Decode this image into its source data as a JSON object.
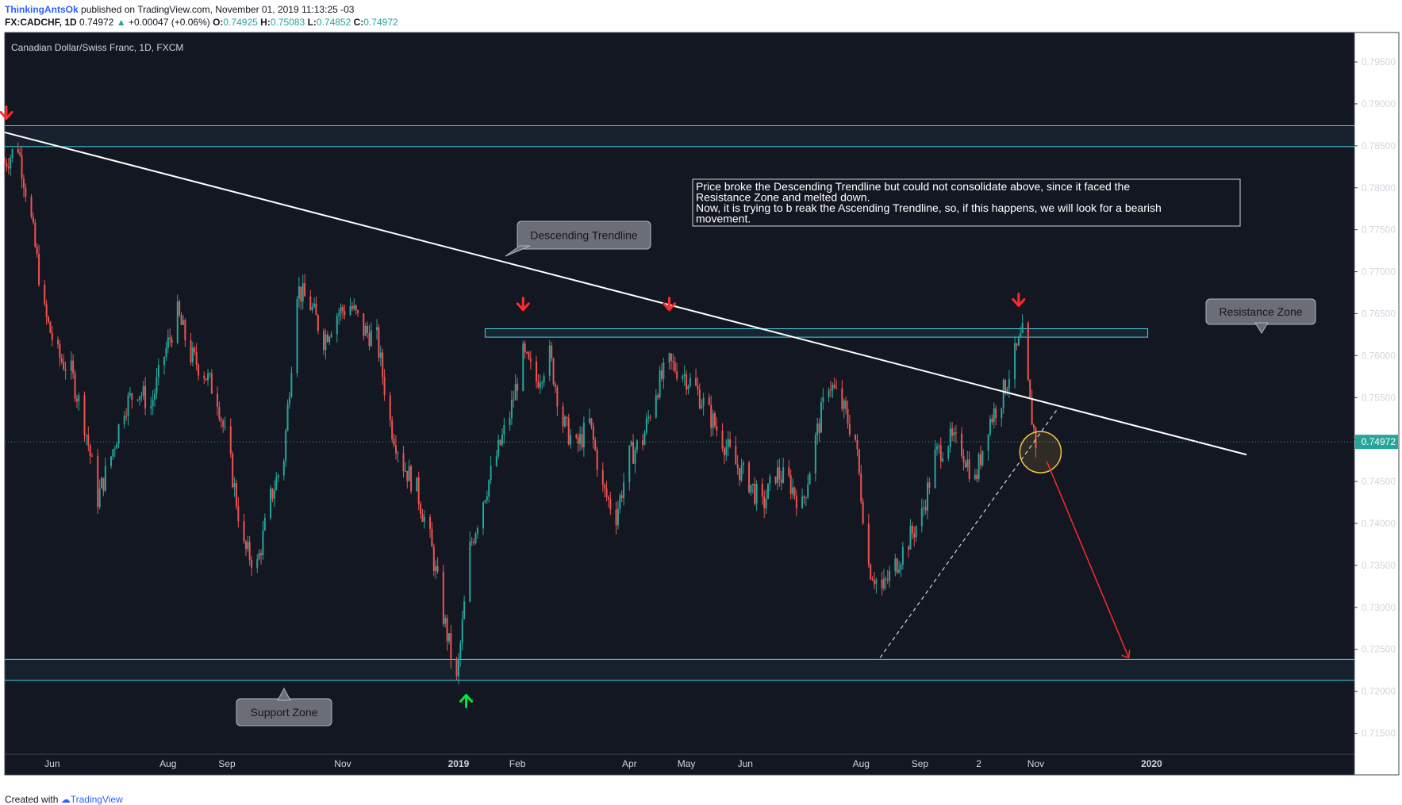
{
  "header": {
    "author": "ThinkingAntsOk",
    "published": "published on TradingView.com, November 01, 2019 11:13:25 -03",
    "symbol": "FX:CADCHF, 1D",
    "last": "0.74972",
    "arrow": "▲",
    "change": "+0.00047 (+0.06%)",
    "o_label": "O:",
    "o_value": "0.74925",
    "h_label": "H:",
    "h_value": "0.75083",
    "l_label": "L:",
    "l_value": "0.74852",
    "c_label": "C:",
    "c_value": "0.74972"
  },
  "footer": {
    "created_with": "Created with",
    "brand": "TradingView"
  },
  "chart_data": {
    "type": "candlestick",
    "title": "Canadian Dollar/Swiss Franc, 1D, FXCM",
    "ylim": [
      0.7125,
      0.7985
    ],
    "y_ticks": [
      0.715,
      0.72,
      0.725,
      0.73,
      0.735,
      0.74,
      0.745,
      0.75,
      0.755,
      0.76,
      0.765,
      0.77,
      0.775,
      0.78,
      0.785,
      0.79,
      0.795
    ],
    "y_tick_labels": [
      "0.71500",
      "0.72000",
      "0.72500",
      "0.73000",
      "0.73500",
      "0.74000",
      "0.74500",
      "0.75000",
      "0.75500",
      "0.76000",
      "0.76500",
      "0.77000",
      "0.77500",
      "0.78000",
      "0.78500",
      "0.79000",
      "0.79500"
    ],
    "x_start": "2018-05-07",
    "x_end": "2020-02-20",
    "x_ticks": [
      {
        "label": "Jun",
        "date": "2018-06-01",
        "bold": false
      },
      {
        "label": "Aug",
        "date": "2018-08-01",
        "bold": false
      },
      {
        "label": "Sep",
        "date": "2018-09-01",
        "bold": false
      },
      {
        "label": "Nov",
        "date": "2018-11-01",
        "bold": false
      },
      {
        "label": "2019",
        "date": "2019-01-01",
        "bold": true
      },
      {
        "label": "Feb",
        "date": "2019-02-01",
        "bold": false
      },
      {
        "label": "Apr",
        "date": "2019-04-01",
        "bold": false
      },
      {
        "label": "May",
        "date": "2019-05-01",
        "bold": false
      },
      {
        "label": "Jun",
        "date": "2019-06-01",
        "bold": false
      },
      {
        "label": "Aug",
        "date": "2019-08-01",
        "bold": false
      },
      {
        "label": "Sep",
        "date": "2019-09-01",
        "bold": false
      },
      {
        "label": "2",
        "date": "2019-10-02",
        "bold": false
      },
      {
        "label": "Nov",
        "date": "2019-11-01",
        "bold": false
      },
      {
        "label": "2020",
        "date": "2020-01-01",
        "bold": true
      }
    ],
    "last_price": 0.74972,
    "last_price_label": "0.74972",
    "price_path": [
      [
        "2018-05-07",
        0.783
      ],
      [
        "2018-05-14",
        0.785
      ],
      [
        "2018-05-21",
        0.776
      ],
      [
        "2018-05-28",
        0.765
      ],
      [
        "2018-06-04",
        0.76
      ],
      [
        "2018-06-11",
        0.758
      ],
      [
        "2018-06-18",
        0.752
      ],
      [
        "2018-06-25",
        0.743
      ],
      [
        "2018-07-02",
        0.748
      ],
      [
        "2018-07-09",
        0.754
      ],
      [
        "2018-07-16",
        0.756
      ],
      [
        "2018-07-23",
        0.754
      ],
      [
        "2018-07-30",
        0.76
      ],
      [
        "2018-08-06",
        0.765
      ],
      [
        "2018-08-13",
        0.76
      ],
      [
        "2018-08-20",
        0.758
      ],
      [
        "2018-08-27",
        0.755
      ],
      [
        "2018-09-03",
        0.747
      ],
      [
        "2018-09-10",
        0.737
      ],
      [
        "2018-09-17",
        0.735
      ],
      [
        "2018-09-24",
        0.743
      ],
      [
        "2018-10-01",
        0.748
      ],
      [
        "2018-10-08",
        0.768
      ],
      [
        "2018-10-15",
        0.766
      ],
      [
        "2018-10-22",
        0.762
      ],
      [
        "2018-10-29",
        0.765
      ],
      [
        "2018-11-05",
        0.766
      ],
      [
        "2018-11-12",
        0.763
      ],
      [
        "2018-11-19",
        0.762
      ],
      [
        "2018-11-26",
        0.752
      ],
      [
        "2018-12-03",
        0.747
      ],
      [
        "2018-12-10",
        0.744
      ],
      [
        "2018-12-17",
        0.738
      ],
      [
        "2018-12-24",
        0.729
      ],
      [
        "2018-12-31",
        0.721
      ],
      [
        "2019-01-07",
        0.737
      ],
      [
        "2019-01-14",
        0.743
      ],
      [
        "2019-01-21",
        0.748
      ],
      [
        "2019-01-28",
        0.753
      ],
      [
        "2019-02-04",
        0.76
      ],
      [
        "2019-02-11",
        0.757
      ],
      [
        "2019-02-18",
        0.76
      ],
      [
        "2019-02-25",
        0.752
      ],
      [
        "2019-03-04",
        0.749
      ],
      [
        "2019-03-11",
        0.752
      ],
      [
        "2019-03-18",
        0.744
      ],
      [
        "2019-03-25",
        0.741
      ],
      [
        "2019-04-01",
        0.748
      ],
      [
        "2019-04-08",
        0.75
      ],
      [
        "2019-04-15",
        0.756
      ],
      [
        "2019-04-22",
        0.759
      ],
      [
        "2019-04-29",
        0.758
      ],
      [
        "2019-05-06",
        0.756
      ],
      [
        "2019-05-13",
        0.753
      ],
      [
        "2019-05-20",
        0.75
      ],
      [
        "2019-05-27",
        0.747
      ],
      [
        "2019-06-03",
        0.745
      ],
      [
        "2019-06-10",
        0.742
      ],
      [
        "2019-06-17",
        0.746
      ],
      [
        "2019-06-24",
        0.745
      ],
      [
        "2019-07-01",
        0.742
      ],
      [
        "2019-07-08",
        0.75
      ],
      [
        "2019-07-15",
        0.757
      ],
      [
        "2019-07-22",
        0.754
      ],
      [
        "2019-07-29",
        0.75
      ],
      [
        "2019-08-05",
        0.735
      ],
      [
        "2019-08-12",
        0.732
      ],
      [
        "2019-08-19",
        0.735
      ],
      [
        "2019-08-26",
        0.738
      ],
      [
        "2019-09-02",
        0.741
      ],
      [
        "2019-09-09",
        0.748
      ],
      [
        "2019-09-16",
        0.75
      ],
      [
        "2019-09-23",
        0.749
      ],
      [
        "2019-09-30",
        0.745
      ],
      [
        "2019-10-07",
        0.752
      ],
      [
        "2019-10-14",
        0.755
      ],
      [
        "2019-10-21",
        0.76
      ],
      [
        "2019-10-25",
        0.7625
      ],
      [
        "2019-10-29",
        0.754
      ],
      [
        "2019-11-01",
        0.7497
      ]
    ],
    "zones": [
      {
        "name": "Resistance top band",
        "price_high": 0.7874,
        "price_low": 0.7849
      },
      {
        "name": "Resistance Zone",
        "price_high": 0.7632,
        "price_low": 0.7622
      },
      {
        "name": "Support Zone",
        "price_high": 0.7238,
        "price_low": 0.7213
      }
    ],
    "annotations": {
      "descending_trendline": {
        "label": "Descending Trendline",
        "from": [
          "2018-05-07",
          0.7866
        ],
        "to": [
          "2020-02-20",
          0.7482
        ]
      },
      "ascending_trendline": {
        "label": "",
        "from": [
          "2019-08-11",
          0.724
        ],
        "to": [
          "2019-11-12",
          0.7535
        ]
      },
      "projection_arrow": {
        "from": [
          "2019-11-01",
          0.747
        ],
        "to": [
          "2019-12-20",
          0.724
        ]
      },
      "callouts": [
        {
          "label": "Descending Trendline"
        },
        {
          "label": "Resistance Zone"
        },
        {
          "label": "Support Zone"
        }
      ],
      "note": [
        "Price broke the Descending Trendline but could not consolidate above, since it faced the",
        "Resistance Zone and melted down.",
        "Now, it is trying to b reak the Ascending Trendline, so, if this happens, we will look for a bearish",
        "movement."
      ],
      "down_markers": [
        "2019-02-04",
        "2019-04-22",
        "2019-10-23"
      ],
      "up_markers": [
        "2018-12-31"
      ]
    },
    "colors": {
      "background": "#131722",
      "up": "#26a69a",
      "down": "#ef5350",
      "zone_line": "#4dd0e1",
      "trendline": "#ffffff",
      "arrow": "#ff2a2a",
      "up_marker": "#00e640",
      "highlight": "#f5c542"
    }
  }
}
